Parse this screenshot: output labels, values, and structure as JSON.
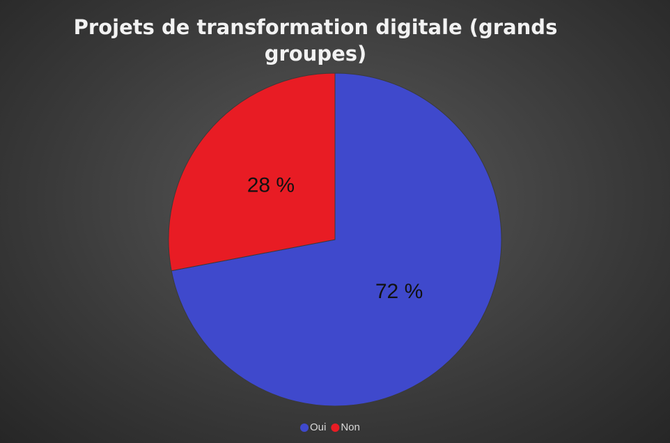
{
  "chart_data": {
    "type": "pie",
    "title": "Projets de transformation digitale (grands groupes)",
    "categories": [
      "Oui",
      "Non"
    ],
    "values": [
      72,
      28
    ],
    "value_labels": [
      "72 %",
      "28 %"
    ],
    "colors": [
      "#3f49cc",
      "#e81c24"
    ],
    "legend": "bottom"
  }
}
